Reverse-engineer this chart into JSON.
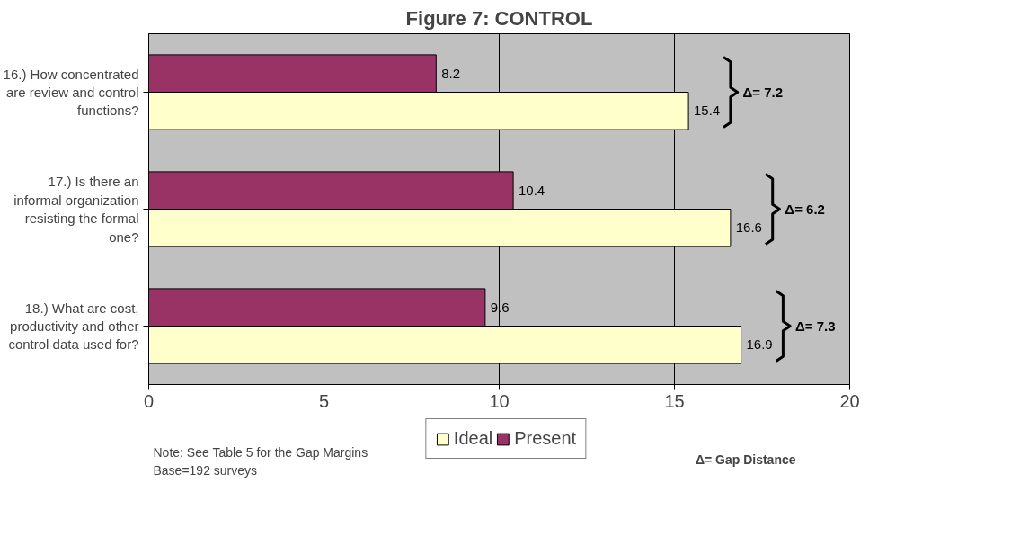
{
  "chart_data": {
    "type": "bar",
    "orientation": "horizontal",
    "title": "Figure 7: CONTROL",
    "categories": [
      "16.) How concentrated are review and control functions?",
      "17.) Is there an informal organization resisting the formal one?",
      "18.) What are cost, productivity and other control data used for?"
    ],
    "series": [
      {
        "name": "Ideal",
        "color": "#ffffcc",
        "values": [
          15.4,
          16.6,
          16.9
        ]
      },
      {
        "name": "Present",
        "color": "#993366",
        "values": [
          8.2,
          10.4,
          9.6
        ]
      }
    ],
    "xlim": [
      0,
      20
    ],
    "xticks": [
      0,
      5,
      10,
      15,
      20
    ],
    "grid": "x",
    "legend": "bottom",
    "data_labels": true,
    "annotations": [
      "Δ= 7.2",
      "Δ= 6.2",
      "Δ= 7.3",
      "Note: See Table 5 for the Gap Margins",
      "Base=192 surveys",
      "Δ= Gap Distance"
    ]
  }
}
